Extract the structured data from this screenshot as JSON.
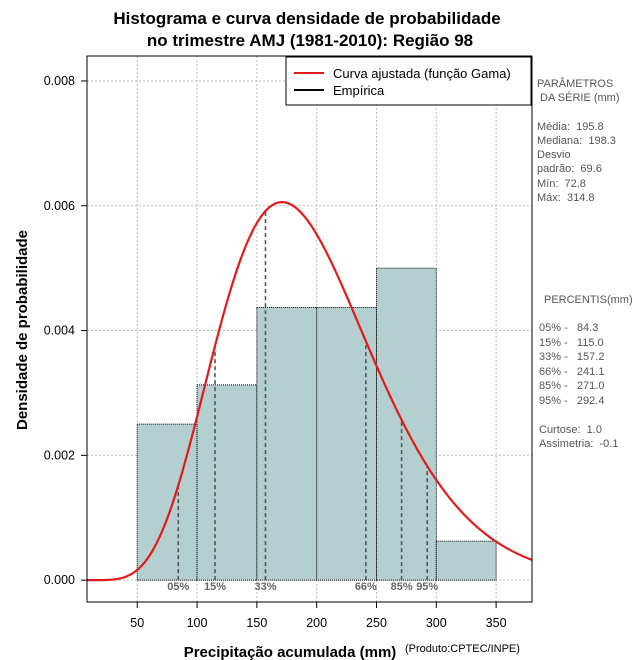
{
  "chart_data": {
    "type": "bar",
    "title": [
      "Histograma e curva densidade de probabilidade",
      "no trimestre AMJ (1981-2010): Região 98"
    ],
    "xlabel": "Precipitação acumulada (mm)",
    "ylabel": "Densidade de probabilidade",
    "credit": "(Produto:CPTEC/INPE)",
    "xlim": [
      8,
      380
    ],
    "ylim": [
      -0.00035,
      0.0084
    ],
    "x_ticks": [
      50,
      100,
      150,
      200,
      250,
      300,
      350
    ],
    "y_ticks": [
      0.0,
      0.002,
      0.004,
      0.006,
      0.008
    ],
    "y_tick_labels": [
      "0.000",
      "0.002",
      "0.004",
      "0.006",
      "0.008"
    ],
    "grid": true,
    "bins": [
      {
        "start": 50,
        "end": 100,
        "density": 0.0025
      },
      {
        "start": 100,
        "end": 150,
        "density": 0.00313
      },
      {
        "start": 150,
        "end": 200,
        "density": 0.00437
      },
      {
        "start": 200,
        "end": 250,
        "density": 0.00437
      },
      {
        "start": 250,
        "end": 300,
        "density": 0.005
      },
      {
        "start": 300,
        "end": 350,
        "density": 0.000625
      }
    ],
    "gamma_fit": {
      "shape": 7.91,
      "scale": 24.75
    },
    "colors": {
      "bars": "#b4cfcf",
      "curve": "#e31a1c",
      "empirical": "#000000",
      "percentile_lines": "#555555"
    },
    "legend": [
      {
        "label": "Curva ajustada (função Gama)",
        "color": "#e31a1c"
      },
      {
        "label": "Empírica",
        "color": "#000000"
      }
    ],
    "legend_position": "top-right",
    "percentiles": [
      {
        "label": "05%",
        "value": 84.3
      },
      {
        "label": "15%",
        "value": 115.0
      },
      {
        "label": "33%",
        "value": 157.2
      },
      {
        "label": "66%",
        "value": 241.1
      },
      {
        "label": "85%",
        "value": 271.0
      },
      {
        "label": "95%",
        "value": 292.4
      }
    ]
  },
  "side_panel": {
    "params_title": [
      "PARÂMETROS",
      " DA SÉRIE (mm)"
    ],
    "stats": [
      "Média:  195.8",
      "Mediana:  198.3",
      "Desvio",
      "padrão:  69.6",
      "Mín:  72.8",
      "Máx:  314.8"
    ],
    "percentis_title": "PERCENTIS(mm)",
    "percentis": [
      "05% -   84.3",
      "15% -   115.0",
      "33% -   157.2",
      "66% -   241.1",
      "85% -   271.0",
      "95% -   292.4"
    ],
    "shape_stats": [
      "Curtose:  1.0",
      "Assimetria:  -0.1"
    ]
  }
}
